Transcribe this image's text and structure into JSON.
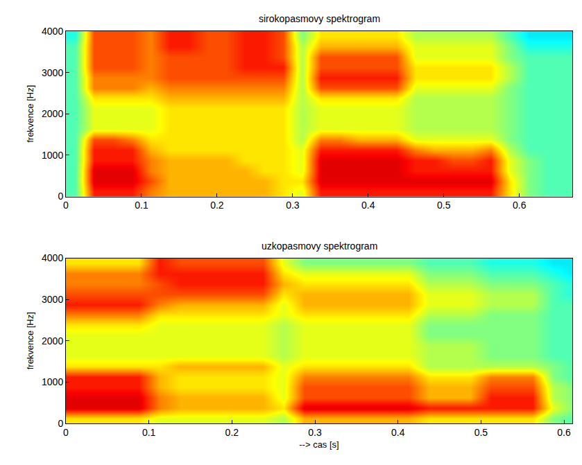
{
  "chart_data": [
    {
      "type": "heatmap",
      "title": "sirokopasmovy spektrogram",
      "y_label": "frekvence [Hz]",
      "color": "jet",
      "x": [
        0,
        0.025,
        0.05,
        0.075,
        0.1,
        0.125,
        0.15,
        0.175,
        0.2,
        0.225,
        0.25,
        0.275,
        0.3,
        0.325,
        0.35,
        0.375,
        0.4,
        0.425,
        0.45,
        0.475,
        0.5,
        0.525,
        0.55,
        0.575,
        0.6,
        0.625,
        0.65,
        0.675
      ],
      "y": [
        0,
        250,
        500,
        750,
        1000,
        1250,
        1500,
        1750,
        2000,
        2250,
        2500,
        2750,
        3000,
        3250,
        3500,
        3750,
        4000
      ],
      "z": [
        [
          4.5,
          8.5,
          8.5,
          8.5,
          7.5,
          7,
          7,
          7,
          7,
          7,
          7,
          6.5,
          6,
          8.5,
          8.5,
          8.5,
          8.5,
          8.5,
          8.5,
          8.5,
          8.5,
          8.5,
          8.5,
          6.5,
          5,
          4.5,
          4.5
        ],
        [
          4.5,
          9,
          9,
          9,
          8,
          7,
          7,
          7,
          7,
          7,
          7,
          6.5,
          6.5,
          9,
          9,
          9,
          9,
          9,
          9,
          9,
          9,
          9,
          9,
          6.5,
          5,
          4.5,
          4.5
        ],
        [
          4.5,
          9,
          9,
          9,
          7.5,
          7,
          7,
          7,
          7,
          7,
          6.5,
          6.5,
          6,
          9,
          9,
          9,
          9,
          9,
          8.5,
          8.5,
          8.5,
          8.5,
          8.5,
          6,
          5,
          4.5,
          4.5
        ],
        [
          4.5,
          8.5,
          8.5,
          8.5,
          7.5,
          7,
          7,
          7,
          7,
          6.5,
          6.5,
          6.5,
          6,
          9,
          9,
          9,
          9,
          9,
          8.5,
          8.5,
          8,
          8,
          8.5,
          6,
          5,
          4.5,
          4.5
        ],
        [
          4.5,
          8.5,
          8.5,
          8.5,
          7,
          6.5,
          6.5,
          6.5,
          6.5,
          6.5,
          6.5,
          6.5,
          6,
          8.5,
          8.5,
          8.5,
          8.5,
          8.5,
          7.5,
          7,
          7,
          7,
          7.5,
          5.5,
          4.5,
          4.5,
          4.5
        ],
        [
          4.5,
          8,
          8,
          7.5,
          6.5,
          6.5,
          6.5,
          6.5,
          6.5,
          6.5,
          6.5,
          6.5,
          5.5,
          7.5,
          7.5,
          7,
          7,
          7,
          6,
          6,
          6,
          6,
          6,
          5,
          4.5,
          4.5,
          4.5
        ],
        [
          4.5,
          6,
          6,
          6,
          6,
          6.5,
          6.5,
          6.5,
          6.5,
          6.5,
          6.5,
          6.5,
          5.5,
          6,
          6,
          6,
          6,
          6,
          5.5,
          5.5,
          5.5,
          5.5,
          5.5,
          5,
          4.5,
          4.5,
          4.5
        ],
        [
          4.5,
          6,
          6,
          6,
          6,
          6.5,
          6.5,
          6.5,
          6.5,
          6.5,
          6.5,
          6.5,
          5.5,
          6,
          6,
          6,
          6,
          6,
          5.5,
          5.5,
          5.5,
          5.5,
          5.5,
          5,
          4.5,
          4.5,
          4.5
        ],
        [
          4.5,
          6,
          6,
          6,
          6,
          6.5,
          6.5,
          6.5,
          6.5,
          6.5,
          6.5,
          6.5,
          5.5,
          6,
          6,
          6,
          6,
          6,
          5.5,
          5.5,
          5.5,
          5.5,
          5.5,
          5,
          4.5,
          4.5,
          4.5
        ],
        [
          4.5,
          6.5,
          6.5,
          6.5,
          6.5,
          7,
          7,
          7,
          7,
          7,
          7,
          7,
          5.5,
          6.5,
          6.5,
          6.5,
          6.5,
          6.5,
          5.5,
          5.5,
          5.5,
          5.5,
          5.5,
          5,
          4.5,
          4.5,
          4.5
        ],
        [
          4.5,
          7.5,
          7.5,
          7.5,
          7,
          7.5,
          7.5,
          7.5,
          7.5,
          7.5,
          7.5,
          7.5,
          5.5,
          8,
          8,
          8,
          8,
          8,
          6,
          6,
          6,
          6,
          6,
          5,
          4.5,
          4.5,
          4.5
        ],
        [
          4.5,
          7.5,
          7.5,
          7.5,
          7.5,
          8,
          8,
          8,
          8,
          8,
          8,
          8,
          5.5,
          8.5,
          8.5,
          8.5,
          8.5,
          8.5,
          6.5,
          6.5,
          6.5,
          6.5,
          6.5,
          5.5,
          4.5,
          4.5,
          4.5
        ],
        [
          4.5,
          8,
          8,
          8,
          7.5,
          8,
          8,
          8,
          8,
          8.5,
          8.5,
          8.5,
          5.5,
          8,
          8,
          8,
          8,
          8,
          6.5,
          6.5,
          6.5,
          6.5,
          6.5,
          5.5,
          4.5,
          4.5,
          4.5
        ],
        [
          4.5,
          8,
          8,
          8,
          7.5,
          8,
          8,
          8,
          8,
          8.5,
          8.5,
          8,
          5.5,
          8,
          8,
          8,
          8,
          8,
          6,
          6,
          6,
          6,
          6,
          5,
          4.5,
          4.5,
          4.5
        ],
        [
          4.5,
          8,
          8,
          8,
          7.5,
          8.5,
          8.5,
          8,
          8,
          8.5,
          8.5,
          8,
          5.5,
          7,
          7,
          7,
          7,
          7,
          6,
          6,
          6,
          6,
          6,
          5,
          4,
          4,
          4
        ],
        [
          4,
          8,
          8,
          8,
          7.5,
          8.5,
          8.5,
          8,
          8,
          8.5,
          8.5,
          8,
          5,
          6.5,
          6.5,
          6.5,
          6.5,
          6.5,
          5.5,
          5.5,
          5.5,
          5.5,
          5.5,
          4.5,
          3.5,
          3.5,
          3.5
        ]
      ],
      "zlim": [
        0,
        10
      ],
      "xlim": [
        0,
        0.67
      ],
      "xticks": [
        0,
        0.1,
        0.2,
        0.3,
        0.4,
        0.5,
        0.6
      ],
      "ylim": [
        0,
        4000
      ],
      "yticks": [
        0,
        1000,
        2000,
        3000,
        4000
      ]
    },
    {
      "type": "heatmap",
      "title": "uzkopasmovy spektrogram",
      "x_label": "--> cas [s]",
      "y_label": "frekvence [Hz]",
      "color": "jet",
      "x": [
        0,
        0.025,
        0.05,
        0.075,
        0.1,
        0.125,
        0.15,
        0.175,
        0.2,
        0.225,
        0.25,
        0.275,
        0.3,
        0.325,
        0.35,
        0.375,
        0.4,
        0.425,
        0.45,
        0.475,
        0.5,
        0.525,
        0.55,
        0.575,
        0.6,
        0.625
      ],
      "y": [
        0,
        250,
        500,
        750,
        1000,
        1250,
        1500,
        1750,
        2000,
        2250,
        2500,
        2750,
        3000,
        3250,
        3500,
        3750,
        4000
      ],
      "z": [
        [
          6.5,
          6.5,
          6.5,
          6.5,
          6,
          6,
          6,
          6,
          6,
          6,
          5.5,
          7,
          7,
          7,
          7,
          7,
          7,
          6.5,
          6.5,
          6.5,
          6.5,
          6.5,
          6.5,
          5,
          4.5
        ],
        [
          9,
          9,
          9,
          9,
          7.5,
          7,
          7,
          7,
          7,
          7,
          6.5,
          9,
          9,
          9,
          9,
          9,
          9,
          8.5,
          8.5,
          8.5,
          8.5,
          8.5,
          8.5,
          6,
          5
        ],
        [
          9,
          9,
          9,
          9,
          7.5,
          7,
          7,
          7,
          7,
          7,
          6,
          8,
          8,
          8,
          8,
          8,
          8,
          7,
          7,
          7,
          8.5,
          8.5,
          8.5,
          5.5,
          5
        ],
        [
          8.5,
          8.5,
          8.5,
          8.5,
          7,
          6.5,
          6.5,
          6.5,
          6.5,
          6.5,
          6,
          8,
          8,
          8,
          8,
          8,
          8,
          7,
          7,
          7,
          8,
          8,
          8,
          5.5,
          5
        ],
        [
          8.5,
          8.5,
          8.5,
          8.5,
          7,
          6.5,
          6.5,
          6.5,
          6.5,
          6.5,
          6,
          7.5,
          7.5,
          7.5,
          7.5,
          7.5,
          7.5,
          6.5,
          6.5,
          6.5,
          7.5,
          7.5,
          7.5,
          5,
          4.5
        ],
        [
          6.5,
          6.5,
          6.5,
          6.5,
          6.5,
          7,
          7,
          7,
          7,
          7,
          6,
          6.5,
          6.5,
          6.5,
          6.5,
          6.5,
          6.5,
          5.5,
          5.5,
          5.5,
          5.5,
          5.5,
          5.5,
          5,
          4.5
        ],
        [
          6,
          6,
          6,
          6,
          6,
          6,
          6,
          6,
          6,
          6,
          5.5,
          6,
          6,
          6,
          6,
          6,
          6,
          5.5,
          5.5,
          5.5,
          5,
          5,
          5,
          4.5,
          4.5
        ],
        [
          6,
          6,
          6,
          6,
          6,
          6,
          6,
          6,
          6,
          6,
          5.5,
          6,
          6,
          6,
          6,
          6,
          6,
          5.5,
          5.5,
          5.5,
          5,
          5,
          5,
          4.5,
          4.5
        ],
        [
          6,
          6,
          6,
          6,
          6,
          6,
          6,
          6,
          6,
          6,
          5.5,
          6,
          6,
          6,
          6,
          6,
          6,
          5,
          5,
          5,
          5,
          5,
          5,
          4.5,
          4.5
        ],
        [
          6.5,
          6.5,
          6.5,
          6.5,
          6,
          6,
          6,
          6,
          6,
          6,
          5.5,
          6,
          6,
          6,
          6,
          6,
          6,
          5,
          5,
          5,
          5,
          5,
          5,
          4.5,
          4.5
        ],
        [
          7.5,
          7.5,
          7.5,
          7.5,
          6.5,
          6.5,
          6.5,
          6.5,
          6.5,
          6.5,
          6,
          6.5,
          6.5,
          6.5,
          6.5,
          6.5,
          6.5,
          5.5,
          5.5,
          5.5,
          5,
          5,
          5,
          4.5,
          4.5
        ],
        [
          8.5,
          8.5,
          8.5,
          8.5,
          7.5,
          7,
          7,
          7,
          7,
          7,
          6,
          7,
          7,
          7,
          7,
          7,
          7,
          6,
          6,
          6,
          5.5,
          5.5,
          5.5,
          4.5,
          4.5
        ],
        [
          8,
          8,
          8,
          8,
          8,
          8,
          8,
          8,
          8,
          8,
          6.5,
          7,
          7,
          7,
          7,
          7,
          7,
          6,
          6,
          6,
          5.5,
          5.5,
          5.5,
          4.5,
          4
        ],
        [
          7.5,
          7.5,
          7.5,
          7.5,
          8,
          8.5,
          8.5,
          8.5,
          8.5,
          8.5,
          7,
          6.5,
          6.5,
          6.5,
          6.5,
          6.5,
          6.5,
          5.5,
          5.5,
          5.5,
          5,
          5,
          5,
          4.5,
          4
        ],
        [
          7.5,
          7.5,
          7.5,
          7.5,
          8.5,
          8.5,
          8.5,
          8.5,
          8.5,
          8.5,
          6.5,
          6,
          6,
          6,
          6,
          6,
          6,
          5,
          5,
          5,
          4.5,
          4.5,
          4.5,
          4,
          3.5
        ],
        [
          6.5,
          6.5,
          6.5,
          6.5,
          8.5,
          8,
          8,
          8,
          8,
          8,
          6,
          5,
          5,
          5,
          5,
          5,
          5,
          4.5,
          4.5,
          4.5,
          4,
          4,
          4,
          3.5,
          3.5
        ]
      ],
      "zlim": [
        0,
        10
      ],
      "xlim": [
        0,
        0.61
      ],
      "xticks": [
        0,
        0.1,
        0.2,
        0.3,
        0.4,
        0.5,
        0.6
      ],
      "ylim": [
        0,
        4000
      ],
      "yticks": [
        0,
        1000,
        2000,
        3000,
        4000
      ]
    }
  ]
}
